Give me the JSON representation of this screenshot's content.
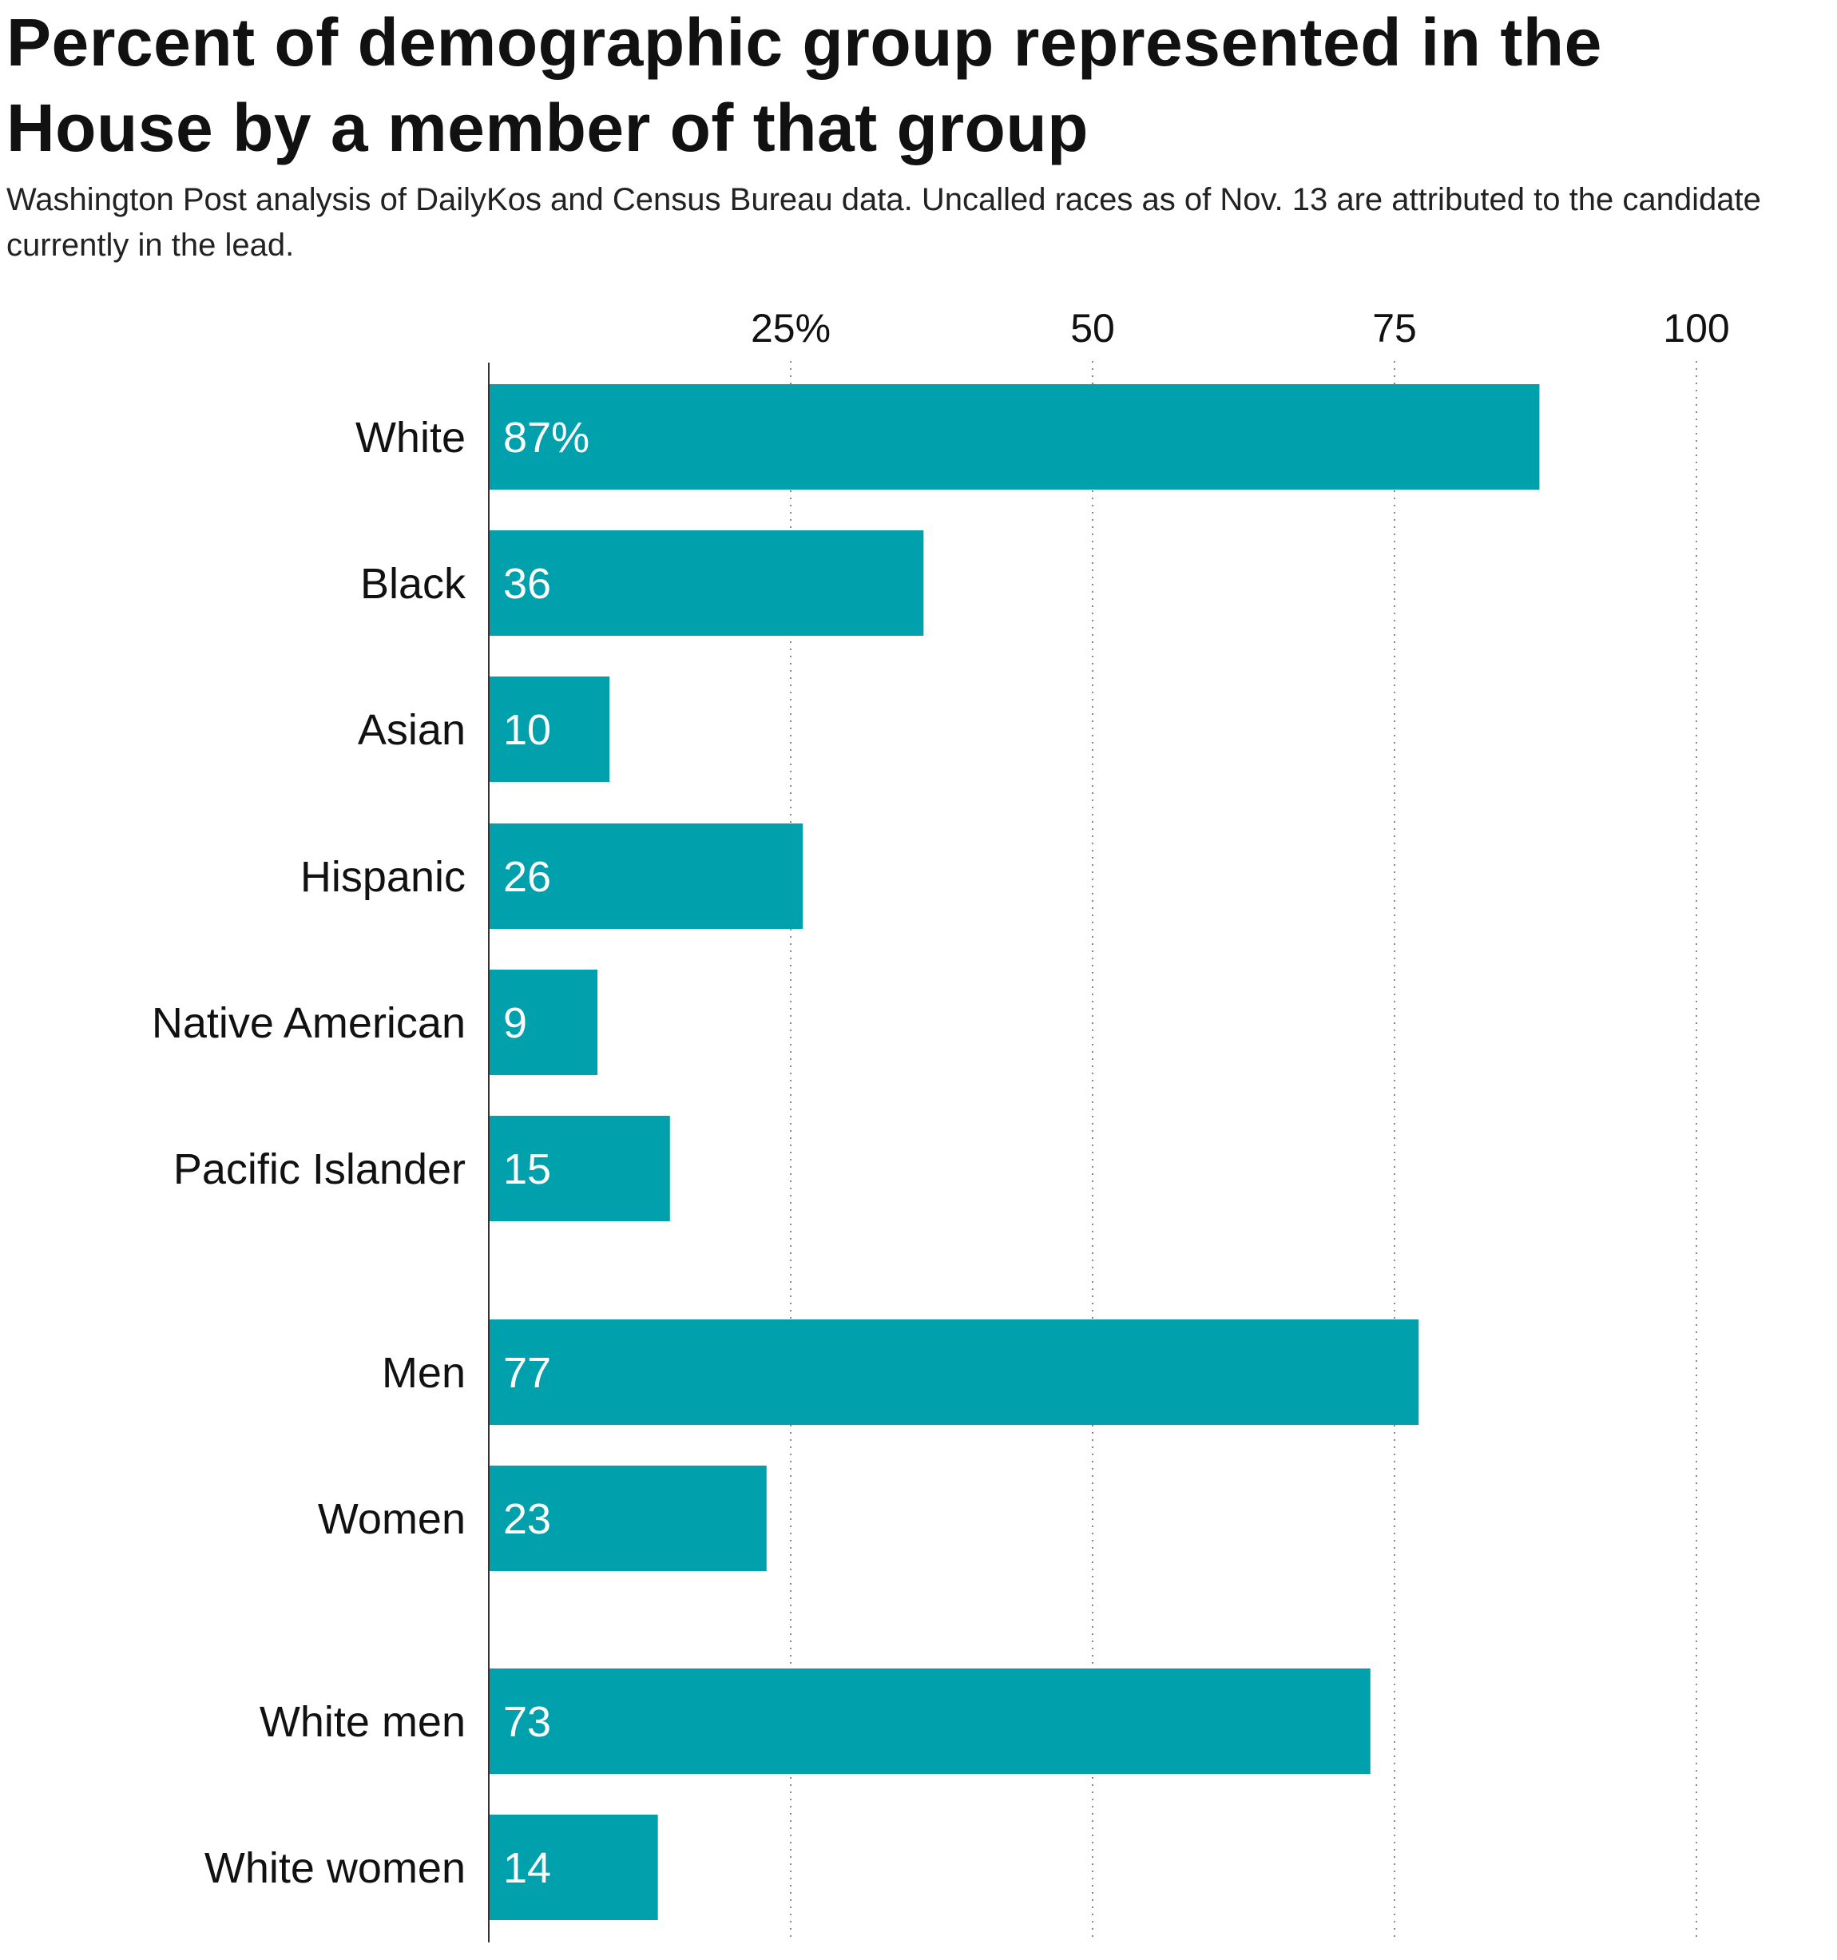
{
  "chart_data": {
    "type": "bar",
    "orientation": "horizontal",
    "title": "Percent of demographic group represented in the House by a member of that group",
    "subtitle": "Washington Post analysis of DailyKos and Census Bureau data. Uncalled races as of Nov. 13 are attributed to the candidate currently in the lead.",
    "categories": [
      "White",
      "Black",
      "Asian",
      "Hispanic",
      "Native American",
      "Pacific Islander",
      "Men",
      "Women",
      "White men",
      "White women"
    ],
    "groups": [
      [
        0,
        1,
        2,
        3,
        4,
        5
      ],
      [
        6,
        7
      ],
      [
        8,
        9
      ]
    ],
    "values": [
      87,
      36,
      10,
      26,
      9,
      15,
      77,
      23,
      73,
      14
    ],
    "value_labels": [
      "87%",
      "36",
      "10",
      "26",
      "9",
      "15",
      "77",
      "23",
      "73",
      "14"
    ],
    "xlim": [
      0,
      100
    ],
    "x_ticks": [
      25,
      50,
      75,
      100
    ],
    "x_tick_labels": [
      "25%",
      "50",
      "75",
      "100"
    ],
    "xlabel": "",
    "ylabel": "",
    "grid": "vertical dotted",
    "legend": "none",
    "bar_color": "#00a0ad"
  }
}
